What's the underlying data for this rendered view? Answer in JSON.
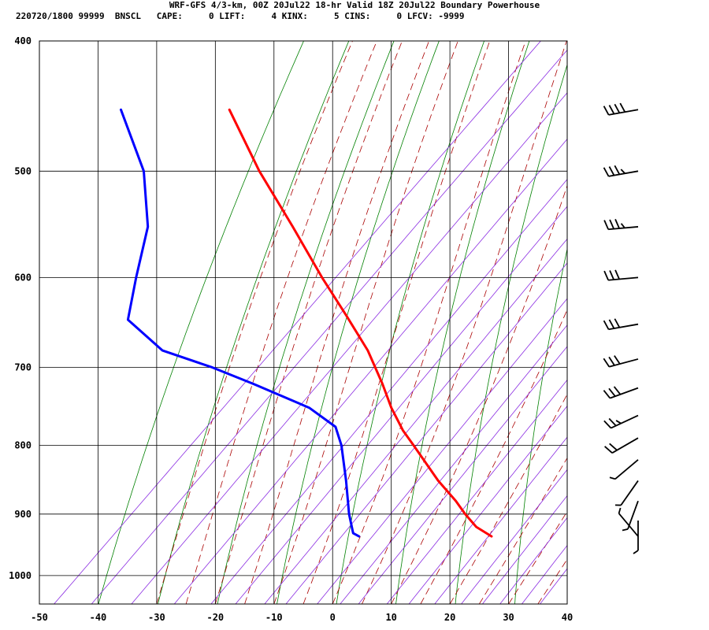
{
  "chart_data": {
    "type": "line",
    "chart_kind": "skew-T log-P sounding",
    "title": "WRF-GFS 4/3-km, 00Z 20Jul22 18-hr Valid 18Z 20Jul22 Boundary Powerhouse",
    "subtitle": "220720/1800 99999  BNSCL   CAPE:     0 LIFT:     4 KINX:     5 CINS:     0 LFCV: -9999",
    "x_ticks": [
      "-50",
      "-40",
      "-30",
      "-20",
      "-10",
      "0",
      "10",
      "20",
      "30",
      "40"
    ],
    "y_ticks": [
      "400",
      "500",
      "600",
      "700",
      "800",
      "900",
      "1000"
    ],
    "x_range": [
      -50,
      40
    ],
    "pressure_range": [
      400,
      1050
    ],
    "grid": true,
    "background_lines": {
      "dry_adiabat_color": "#008000",
      "moist_adiabat_color": "#aa0000",
      "mixing_ratio_color": "#8a2be2"
    },
    "series": [
      {
        "color": "#ff0000",
        "points": [
          {
            "p": 450,
            "t": -17.6
          },
          {
            "p": 500,
            "t": -12.5
          },
          {
            "p": 550,
            "t": -6.8
          },
          {
            "p": 600,
            "t": -1.8
          },
          {
            "p": 640,
            "t": 2.3
          },
          {
            "p": 680,
            "t": 6.0
          },
          {
            "p": 720,
            "t": 8.5
          },
          {
            "p": 750,
            "t": 10.0
          },
          {
            "p": 780,
            "t": 12.0
          },
          {
            "p": 800,
            "t": 13.8
          },
          {
            "p": 850,
            "t": 18.0
          },
          {
            "p": 880,
            "t": 21.0
          },
          {
            "p": 900,
            "t": 22.6
          },
          {
            "p": 920,
            "t": 24.5
          },
          {
            "p": 935,
            "t": 27.1
          }
        ]
      },
      {
        "color": "#0000ff",
        "points": [
          {
            "p": 450,
            "t": -36.1
          },
          {
            "p": 500,
            "t": -32.2
          },
          {
            "p": 550,
            "t": -31.5
          },
          {
            "p": 600,
            "t": -33.5
          },
          {
            "p": 645,
            "t": -34.9
          },
          {
            "p": 680,
            "t": -29.0
          },
          {
            "p": 700,
            "t": -20.5
          },
          {
            "p": 720,
            "t": -13.5
          },
          {
            "p": 750,
            "t": -4.0
          },
          {
            "p": 775,
            "t": 0.5
          },
          {
            "p": 800,
            "t": 1.5
          },
          {
            "p": 850,
            "t": 2.3
          },
          {
            "p": 900,
            "t": 2.8
          },
          {
            "p": 930,
            "t": 3.5
          },
          {
            "p": 935,
            "t": 4.5
          }
        ]
      }
    ],
    "wind_barbs": [
      {
        "p": 450,
        "dir": 260,
        "speed": 40
      },
      {
        "p": 500,
        "dir": 260,
        "speed": 35
      },
      {
        "p": 550,
        "dir": 265,
        "speed": 35
      },
      {
        "p": 600,
        "dir": 265,
        "speed": 30
      },
      {
        "p": 650,
        "dir": 260,
        "speed": 30
      },
      {
        "p": 690,
        "dir": 255,
        "speed": 30
      },
      {
        "p": 725,
        "dir": 250,
        "speed": 30
      },
      {
        "p": 760,
        "dir": 245,
        "speed": 25
      },
      {
        "p": 790,
        "dir": 240,
        "speed": 20
      },
      {
        "p": 820,
        "dir": 230,
        "speed": 5
      },
      {
        "p": 850,
        "dir": 215,
        "speed": 5
      },
      {
        "p": 880,
        "dir": 200,
        "speed": 5
      },
      {
        "p": 910,
        "dir": 180,
        "speed": 5
      },
      {
        "p": 935,
        "dir": 320,
        "speed": 5
      }
    ]
  }
}
